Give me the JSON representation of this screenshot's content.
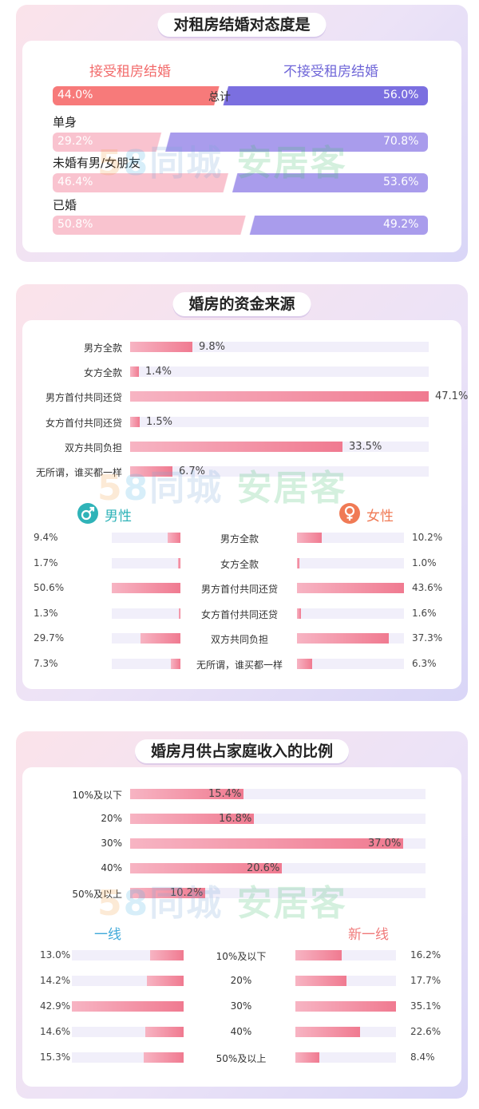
{
  "watermark": {
    "n5": "5",
    "n8": "8",
    "tc": "同城",
    "aj": "安居客"
  },
  "section1": {
    "title": "对租房结婚对态度是",
    "accept_label": "接受租房结婚",
    "reject_label": "不接受租房结婚",
    "total_label": "总计",
    "total_accept": "44.0%",
    "total_reject": "56.0%"
  },
  "section2": {
    "title": "婚房的资金来源",
    "male_label": "男性",
    "female_label": "女性",
    "male_icon": "male-symbol-icon",
    "female_icon": "female-symbol-icon",
    "male_color": "#2fb3b8",
    "female_color": "#f07a55"
  },
  "section3": {
    "title": "婚房月供占家庭收入的比例",
    "tier1_label": "一线",
    "newtier1_label": "新一线",
    "tier1_color": "#3fa9d9",
    "newtier1_color": "#f07a7a"
  },
  "chart_data": [
    {
      "type": "bar",
      "title": "对租房结婚对态度是",
      "categories": [
        "总计",
        "单身",
        "未婚有男/女朋友",
        "已婚"
      ],
      "series": [
        {
          "name": "接受租房结婚",
          "values": [
            44.0,
            29.2,
            46.4,
            50.8
          ],
          "labels": [
            "44.0%",
            "29.2%",
            "46.4%",
            "50.8%"
          ],
          "color": "#f77a7a"
        },
        {
          "name": "不接受租房结婚",
          "values": [
            56.0,
            70.8,
            53.6,
            49.2
          ],
          "labels": [
            "56.0%",
            "70.8%",
            "53.6%",
            "49.2%"
          ],
          "color": "#7b6fe0"
        }
      ],
      "stacked": true,
      "ylim": [
        0,
        100
      ]
    },
    {
      "type": "bar",
      "title": "婚房的资金来源",
      "categories": [
        "男方全款",
        "女方全款",
        "男方首付共同还贷",
        "女方首付共同还贷",
        "双方共同负担",
        "无所谓，谁买都一样"
      ],
      "values": [
        9.8,
        1.4,
        47.1,
        1.5,
        33.5,
        6.7
      ],
      "labels": [
        "9.8%",
        "1.4%",
        "47.1%",
        "1.5%",
        "33.5%",
        "6.7%"
      ],
      "xlim": [
        0,
        47.1
      ]
    },
    {
      "type": "bar",
      "categories": [
        "男方全款",
        "女方全款",
        "男方首付共同还贷",
        "女方首付共同还贷",
        "双方共同负担",
        "无所谓，谁买都一样"
      ],
      "series": [
        {
          "name": "男性",
          "values": [
            9.4,
            1.7,
            50.6,
            1.3,
            29.7,
            7.3
          ],
          "labels": [
            "9.4%",
            "1.7%",
            "50.6%",
            "1.3%",
            "29.7%",
            "7.3%"
          ]
        },
        {
          "name": "女性",
          "values": [
            10.2,
            1.0,
            43.6,
            1.6,
            37.3,
            6.3
          ],
          "labels": [
            "10.2%",
            "1.0%",
            "43.6%",
            "1.6%",
            "37.3%",
            "6.3%"
          ]
        }
      ]
    },
    {
      "type": "bar",
      "title": "婚房月供占家庭收入的比例",
      "categories": [
        "10%及以下",
        "20%",
        "30%",
        "40%",
        "50%及以上"
      ],
      "values": [
        15.4,
        16.8,
        37.0,
        20.6,
        10.2
      ],
      "labels": [
        "15.4%",
        "16.8%",
        "37.0%",
        "20.6%",
        "10.2%"
      ]
    },
    {
      "type": "bar",
      "categories": [
        "10%及以下",
        "20%",
        "30%",
        "40%",
        "50%及以上"
      ],
      "series": [
        {
          "name": "一线",
          "values": [
            13.0,
            14.2,
            42.9,
            14.6,
            15.3
          ],
          "labels": [
            "13.0%",
            "14.2%",
            "42.9%",
            "14.6%",
            "15.3%"
          ]
        },
        {
          "name": "新一线",
          "values": [
            16.2,
            17.7,
            35.1,
            22.6,
            8.4
          ],
          "labels": [
            "16.2%",
            "17.7%",
            "35.1%",
            "22.6%",
            "8.4%"
          ]
        }
      ]
    }
  ]
}
